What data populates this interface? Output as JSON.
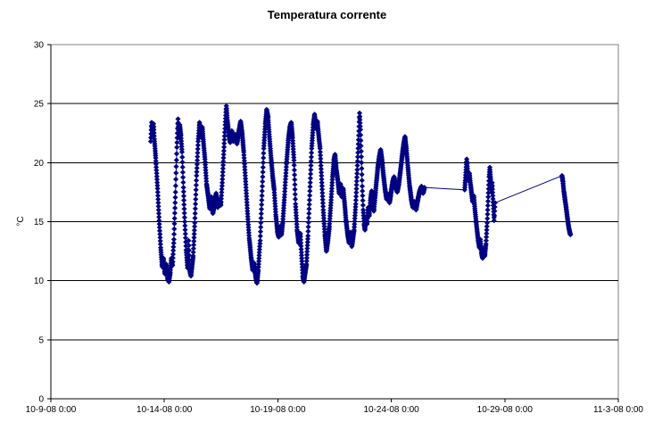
{
  "chart_data": {
    "type": "line",
    "title": "Temperatura corrente",
    "xlabel": "",
    "ylabel": "°C",
    "ylim": [
      0,
      30
    ],
    "yticks": [
      0,
      5,
      10,
      15,
      20,
      25,
      30
    ],
    "gridlines_at": [
      5,
      10,
      15,
      20,
      25
    ],
    "grid": "horizontal",
    "legend": "none",
    "x_unit": "days after 10-9-08 0:00",
    "xlim_days": [
      0,
      25
    ],
    "xticks": [
      {
        "t": 0,
        "label": "10-9-08 0:00"
      },
      {
        "t": 5,
        "label": "10-14-08 0:00"
      },
      {
        "t": 10,
        "label": "10-19-08 0:00"
      },
      {
        "t": 15,
        "label": "10-24-08 0:00"
      },
      {
        "t": 20,
        "label": "10-29-08 0:00"
      },
      {
        "t": 25,
        "label": "11-3-08 0:00"
      }
    ],
    "colors": {
      "series": "#000080",
      "gridline": "#000000",
      "axis": "#000000",
      "plot_border": "#808080",
      "background": "#ffffff",
      "text": "#000000"
    },
    "series": [
      {
        "name": "Temperatura corrente",
        "marker": "diamond",
        "color": "#000080",
        "sample_interval_days": 0.008,
        "gap_segments": [
          [
            16.46,
            18.23
          ],
          [
            19.57,
            22.52
          ]
        ],
        "points": [
          [
            4.4,
            21.8
          ],
          [
            4.44,
            23.4
          ],
          [
            4.48,
            22.3
          ],
          [
            4.52,
            23.3
          ],
          [
            4.56,
            22.0
          ],
          [
            4.62,
            20.4
          ],
          [
            4.7,
            17.8
          ],
          [
            4.78,
            14.8
          ],
          [
            4.84,
            12.8
          ],
          [
            4.9,
            11.2
          ],
          [
            4.96,
            11.9
          ],
          [
            5.02,
            10.6
          ],
          [
            5.08,
            11.4
          ],
          [
            5.14,
            10.2
          ],
          [
            5.2,
            9.9
          ],
          [
            5.26,
            10.7
          ],
          [
            5.31,
            11.9
          ],
          [
            5.36,
            11.3
          ],
          [
            5.42,
            13.5
          ],
          [
            5.49,
            17.5
          ],
          [
            5.55,
            21.3
          ],
          [
            5.6,
            23.7
          ],
          [
            5.64,
            22.1
          ],
          [
            5.68,
            23.2
          ],
          [
            5.73,
            22.3
          ],
          [
            5.78,
            20.9
          ],
          [
            5.84,
            17.9
          ],
          [
            5.9,
            15.0
          ],
          [
            5.96,
            12.6
          ],
          [
            6.02,
            11.1
          ],
          [
            6.07,
            13.4
          ],
          [
            6.12,
            10.9
          ],
          [
            6.17,
            10.4
          ],
          [
            6.22,
            11.2
          ],
          [
            6.27,
            12.1
          ],
          [
            6.34,
            14.9
          ],
          [
            6.42,
            18.9
          ],
          [
            6.49,
            21.8
          ],
          [
            6.55,
            23.4
          ],
          [
            6.61,
            22.2
          ],
          [
            6.67,
            23.0
          ],
          [
            6.73,
            21.6
          ],
          [
            6.79,
            20.3
          ],
          [
            6.86,
            18.2
          ],
          [
            6.93,
            17.2
          ],
          [
            7.0,
            16.1
          ],
          [
            7.07,
            17.1
          ],
          [
            7.14,
            15.7
          ],
          [
            7.21,
            16.5
          ],
          [
            7.28,
            17.4
          ],
          [
            7.35,
            16.2
          ],
          [
            7.42,
            16.9
          ],
          [
            7.49,
            16.4
          ],
          [
            7.55,
            18.3
          ],
          [
            7.62,
            21.0
          ],
          [
            7.68,
            23.2
          ],
          [
            7.73,
            24.8
          ],
          [
            7.78,
            23.6
          ],
          [
            7.84,
            22.4
          ],
          [
            7.9,
            21.7
          ],
          [
            7.97,
            22.7
          ],
          [
            8.04,
            21.8
          ],
          [
            8.12,
            22.4
          ],
          [
            8.2,
            21.6
          ],
          [
            8.28,
            22.6
          ],
          [
            8.36,
            23.5
          ],
          [
            8.43,
            22.4
          ],
          [
            8.5,
            20.9
          ],
          [
            8.58,
            18.4
          ],
          [
            8.66,
            15.9
          ],
          [
            8.74,
            13.6
          ],
          [
            8.82,
            12.0
          ],
          [
            8.89,
            10.9
          ],
          [
            8.95,
            11.5
          ],
          [
            9.02,
            10.4
          ],
          [
            9.08,
            9.8
          ],
          [
            9.14,
            10.9
          ],
          [
            9.22,
            13.4
          ],
          [
            9.3,
            17.2
          ],
          [
            9.38,
            21.2
          ],
          [
            9.45,
            23.3
          ],
          [
            9.51,
            24.5
          ],
          [
            9.57,
            23.8
          ],
          [
            9.63,
            22.2
          ],
          [
            9.7,
            20.4
          ],
          [
            9.77,
            18.9
          ],
          [
            9.84,
            17.7
          ],
          [
            9.91,
            15.6
          ],
          [
            9.98,
            14.2
          ],
          [
            10.04,
            13.7
          ],
          [
            10.1,
            14.6
          ],
          [
            10.16,
            13.9
          ],
          [
            10.22,
            15.0
          ],
          [
            10.3,
            17.3
          ],
          [
            10.38,
            19.9
          ],
          [
            10.46,
            21.9
          ],
          [
            10.53,
            23.0
          ],
          [
            10.59,
            23.4
          ],
          [
            10.65,
            22.1
          ],
          [
            10.71,
            20.2
          ],
          [
            10.78,
            16.5
          ],
          [
            10.85,
            14.3
          ],
          [
            10.92,
            13.2
          ],
          [
            10.99,
            14.0
          ],
          [
            11.04,
            12.4
          ],
          [
            11.1,
            10.4
          ],
          [
            11.15,
            9.9
          ],
          [
            11.2,
            10.6
          ],
          [
            11.26,
            11.4
          ],
          [
            11.33,
            13.8
          ],
          [
            11.41,
            17.6
          ],
          [
            11.49,
            21.2
          ],
          [
            11.56,
            23.2
          ],
          [
            11.62,
            24.1
          ],
          [
            11.68,
            22.9
          ],
          [
            11.74,
            23.5
          ],
          [
            11.8,
            22.3
          ],
          [
            11.86,
            21.2
          ],
          [
            11.93,
            18.6
          ],
          [
            12.0,
            16.0
          ],
          [
            12.07,
            13.9
          ],
          [
            12.14,
            12.5
          ],
          [
            12.2,
            13.3
          ],
          [
            12.27,
            14.6
          ],
          [
            12.34,
            16.6
          ],
          [
            12.41,
            18.8
          ],
          [
            12.47,
            20.2
          ],
          [
            12.52,
            20.7
          ],
          [
            12.58,
            19.4
          ],
          [
            12.64,
            18.5
          ],
          [
            12.7,
            17.4
          ],
          [
            12.76,
            18.2
          ],
          [
            12.82,
            17.1
          ],
          [
            12.88,
            17.8
          ],
          [
            12.94,
            16.6
          ],
          [
            13.0,
            15.2
          ],
          [
            13.07,
            14.0
          ],
          [
            13.14,
            13.2
          ],
          [
            13.2,
            14.1
          ],
          [
            13.26,
            12.9
          ],
          [
            13.31,
            13.6
          ],
          [
            13.36,
            14.3
          ],
          [
            13.43,
            16.5
          ],
          [
            13.5,
            19.4
          ],
          [
            13.56,
            22.3
          ],
          [
            13.6,
            24.2
          ],
          [
            13.64,
            22.8
          ],
          [
            13.68,
            20.5
          ],
          [
            13.72,
            18.0
          ],
          [
            13.76,
            16.0
          ],
          [
            13.8,
            14.8
          ],
          [
            13.84,
            14.3
          ],
          [
            13.88,
            15.4
          ],
          [
            13.93,
            14.8
          ],
          [
            13.98,
            16.2
          ],
          [
            14.03,
            15.5
          ],
          [
            14.08,
            16.8
          ],
          [
            14.13,
            17.6
          ],
          [
            14.18,
            16.4
          ],
          [
            14.23,
            15.9
          ],
          [
            14.28,
            17.0
          ],
          [
            14.34,
            18.3
          ],
          [
            14.4,
            19.5
          ],
          [
            14.47,
            20.5
          ],
          [
            14.53,
            21.1
          ],
          [
            14.59,
            20.2
          ],
          [
            14.65,
            19.0
          ],
          [
            14.72,
            17.8
          ],
          [
            14.79,
            16.9
          ],
          [
            14.86,
            17.3
          ],
          [
            14.92,
            16.6
          ],
          [
            14.99,
            17.5
          ],
          [
            15.06,
            18.4
          ],
          [
            15.12,
            18.8
          ],
          [
            15.19,
            18.0
          ],
          [
            15.26,
            17.5
          ],
          [
            15.33,
            18.2
          ],
          [
            15.4,
            19.3
          ],
          [
            15.47,
            20.5
          ],
          [
            15.54,
            21.5
          ],
          [
            15.6,
            22.2
          ],
          [
            15.66,
            21.2
          ],
          [
            15.73,
            19.6
          ],
          [
            15.8,
            18.1
          ],
          [
            15.88,
            16.9
          ],
          [
            15.95,
            16.2
          ],
          [
            16.02,
            16.7
          ],
          [
            16.09,
            16.0
          ],
          [
            16.17,
            16.9
          ],
          [
            16.25,
            17.6
          ],
          [
            16.33,
            18.0
          ],
          [
            16.4,
            17.4
          ],
          [
            16.46,
            17.9
          ],
          [
            18.23,
            17.7
          ],
          [
            18.26,
            18.5
          ],
          [
            18.29,
            19.4
          ],
          [
            18.32,
            20.3
          ],
          [
            18.36,
            19.3
          ],
          [
            18.4,
            18.5
          ],
          [
            18.44,
            19.1
          ],
          [
            18.48,
            18.3
          ],
          [
            18.53,
            17.5
          ],
          [
            18.58,
            16.7
          ],
          [
            18.63,
            17.2
          ],
          [
            18.68,
            16.1
          ],
          [
            18.73,
            15.1
          ],
          [
            18.78,
            14.2
          ],
          [
            18.83,
            13.4
          ],
          [
            18.88,
            12.8
          ],
          [
            18.92,
            13.5
          ],
          [
            18.97,
            12.4
          ],
          [
            19.02,
            11.9
          ],
          [
            19.07,
            12.7
          ],
          [
            19.12,
            12.1
          ],
          [
            19.17,
            13.1
          ],
          [
            19.22,
            14.9
          ],
          [
            19.27,
            17.1
          ],
          [
            19.31,
            18.8
          ],
          [
            19.34,
            19.6
          ],
          [
            19.38,
            18.6
          ],
          [
            19.41,
            17.5
          ],
          [
            19.44,
            18.3
          ],
          [
            19.47,
            17.2
          ],
          [
            19.5,
            16.1
          ],
          [
            19.53,
            15.1
          ],
          [
            19.55,
            15.9
          ],
          [
            19.57,
            16.6
          ],
          [
            22.52,
            18.9
          ],
          [
            22.56,
            18.4
          ],
          [
            22.6,
            17.6
          ],
          [
            22.65,
            16.9
          ],
          [
            22.7,
            16.2
          ],
          [
            22.74,
            15.6
          ],
          [
            22.78,
            15.0
          ],
          [
            22.82,
            14.5
          ],
          [
            22.86,
            14.1
          ],
          [
            22.89,
            13.9
          ]
        ]
      }
    ]
  }
}
